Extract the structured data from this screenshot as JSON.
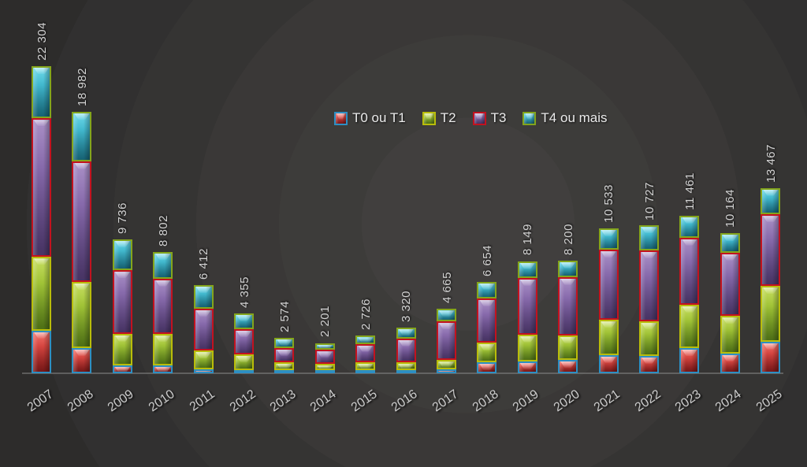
{
  "chart_data": {
    "type": "bar",
    "stacked": true,
    "title": "",
    "xlabel": "",
    "ylabel": "",
    "grid": false,
    "legend_position": "top-center",
    "categories": [
      "2007",
      "2008",
      "2009",
      "2010",
      "2011",
      "2012",
      "2013",
      "2014",
      "2015",
      "2016",
      "2017",
      "2018",
      "2019",
      "2020",
      "2021",
      "2022",
      "2023",
      "2024",
      "2025"
    ],
    "totals": [
      22304,
      18982,
      9736,
      8802,
      6412,
      4355,
      2574,
      2201,
      2726,
      3320,
      4665,
      6654,
      8149,
      8200,
      10533,
      10727,
      11461,
      10164,
      13467
    ],
    "total_labels": [
      "22 304",
      "18 982",
      "9 736",
      "8 802",
      "6 412",
      "4 355",
      "2 574",
      "2 201",
      "2 726",
      "3 320",
      "4 665",
      "6 654",
      "8 149",
      "8 200",
      "10 533",
      "10 727",
      "11 461",
      "10 164",
      "13 467"
    ],
    "series": [
      {
        "name": "T0 ou T1",
        "fill_top": "#ef5a52",
        "fill_bottom": "#a62020",
        "border": "#2d8fc3",
        "values": [
          3100,
          1846,
          576,
          579,
          286,
          229,
          229,
          226,
          232,
          225,
          281,
          803,
          867,
          975,
          1331,
          1273,
          1832,
          1444,
          2302
        ]
      },
      {
        "name": "T2",
        "fill_top": "#bcd844",
        "fill_bottom": "#6d9c1e",
        "border": "#b9bd0a",
        "values": [
          5347,
          4788,
          2304,
          2258,
          1374,
          1146,
          572,
          451,
          580,
          563,
          674,
          1434,
          1965,
          1777,
          2546,
          2494,
          3152,
          2714,
          4040
        ]
      },
      {
        "name": "T3",
        "fill_top": "#9a7cbc",
        "fill_bottom": "#64488c",
        "border": "#c3121f",
        "values": [
          10062,
          8771,
          4609,
          4054,
          3035,
          1834,
          1029,
          1016,
          1334,
          1744,
          2811,
          3212,
          4103,
          4244,
          5093,
          5162,
          4872,
          4620,
          5200
        ]
      },
      {
        "name": "T4 ou mais",
        "fill_top": "#55d2e6",
        "fill_bottom": "#1f8aa2",
        "border": "#84a51c",
        "values": [
          3795,
          3577,
          2247,
          1911,
          1717,
          1146,
          744,
          508,
          580,
          788,
          899,
          1205,
          1214,
          1204,
          1563,
          1798,
          1605,
          1386,
          1925
        ]
      }
    ]
  },
  "legend": {
    "items": [
      {
        "label": "T0 ou T1"
      },
      {
        "label": "T2"
      },
      {
        "label": "T3"
      },
      {
        "label": "T4 ou mais"
      }
    ]
  },
  "colors": {
    "label_text": "#d3d3d3",
    "tick_text": "#cccccc",
    "legend_text": "#ebebeb",
    "axis_line": "#8c8c8c",
    "background_center": "#413f3e",
    "background_corner": "#222120"
  }
}
